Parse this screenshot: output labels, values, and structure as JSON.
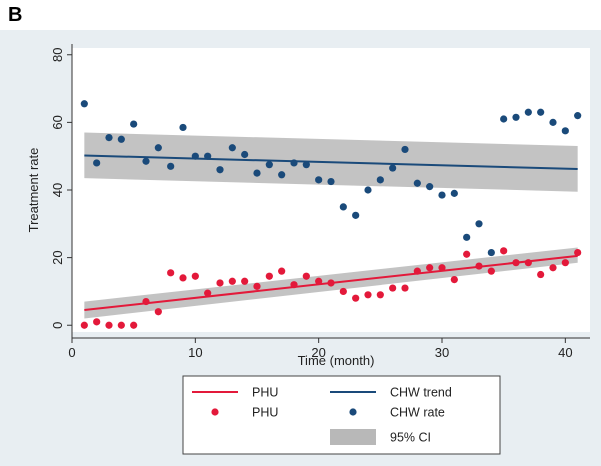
{
  "panel_label": "B",
  "chart_data": {
    "type": "scatter",
    "title": "",
    "xlabel": "Time (month)",
    "ylabel": "Treatment rate",
    "xlim": [
      0,
      42
    ],
    "ylim": [
      -2,
      82
    ],
    "xticks": [
      0,
      10,
      20,
      30,
      40
    ],
    "yticks": [
      0,
      20,
      40,
      60,
      80
    ],
    "grid": false,
    "legend_position": "bottom",
    "colors": {
      "phu": "#e3193a",
      "chw": "#1a4a7a",
      "ci": "#b8b8b8",
      "plot_bg": "#ffffff",
      "outer_bg": "#e8eef2"
    },
    "series": [
      {
        "name": "PHU",
        "kind": "points",
        "x": [
          1,
          2,
          3,
          4,
          5,
          6,
          7,
          8,
          9,
          10,
          11,
          12,
          13,
          14,
          15,
          16,
          17,
          18,
          19,
          20,
          21,
          22,
          23,
          24,
          25,
          26,
          27,
          28,
          29,
          30,
          31,
          32,
          33,
          34,
          35,
          36,
          37,
          38,
          39,
          40,
          41
        ],
        "y": [
          0,
          1,
          0,
          0,
          0,
          7,
          4,
          15.5,
          14,
          14.5,
          9.5,
          12.5,
          13,
          13,
          11.5,
          14.5,
          16,
          12,
          14.5,
          13,
          12.5,
          10,
          8,
          9,
          9,
          11,
          11,
          16,
          17,
          17,
          13.5,
          21,
          17.5,
          16,
          22,
          18.5,
          18.5,
          15,
          17,
          18.5,
          21.5
        ]
      },
      {
        "name": "CHW rate",
        "kind": "points",
        "x": [
          1,
          2,
          3,
          4,
          5,
          6,
          7,
          8,
          9,
          10,
          11,
          12,
          13,
          14,
          15,
          16,
          17,
          18,
          19,
          20,
          21,
          22,
          23,
          24,
          25,
          26,
          27,
          28,
          29,
          30,
          31,
          32,
          33,
          34,
          35,
          36,
          37,
          38,
          39,
          40,
          41
        ],
        "y": [
          65.5,
          48,
          55.5,
          55,
          59.5,
          48.5,
          52.5,
          47,
          58.5,
          50,
          50,
          46,
          52.5,
          50.5,
          45,
          47.5,
          44.5,
          48,
          47.5,
          43,
          42.5,
          35,
          32.5,
          40,
          43,
          46.5,
          52,
          42,
          41,
          38.5,
          39,
          26,
          30,
          21.5,
          61,
          61.5,
          63,
          63,
          60,
          57.5,
          62
        ]
      },
      {
        "name": "PHU",
        "kind": "trend",
        "x": [
          1,
          41
        ],
        "y": [
          4.5,
          20.5
        ],
        "ci_lower": [
          2,
          18.5
        ],
        "ci_upper": [
          7,
          23
        ]
      },
      {
        "name": "CHW trend",
        "kind": "trend",
        "x": [
          1,
          41
        ],
        "y": [
          50.2,
          46.2
        ],
        "ci_lower": [
          43.5,
          39.5
        ],
        "ci_upper": [
          57,
          53
        ]
      }
    ],
    "legend": [
      {
        "label": "PHU",
        "symbol": "line",
        "color": "#e3193a"
      },
      {
        "label": "CHW trend",
        "symbol": "line",
        "color": "#1a4a7a"
      },
      {
        "label": "PHU",
        "symbol": "dot",
        "color": "#e3193a"
      },
      {
        "label": "CHW rate",
        "symbol": "dot",
        "color": "#1a4a7a"
      },
      {
        "label": "95% CI",
        "symbol": "band",
        "color": "#b8b8b8"
      }
    ]
  }
}
